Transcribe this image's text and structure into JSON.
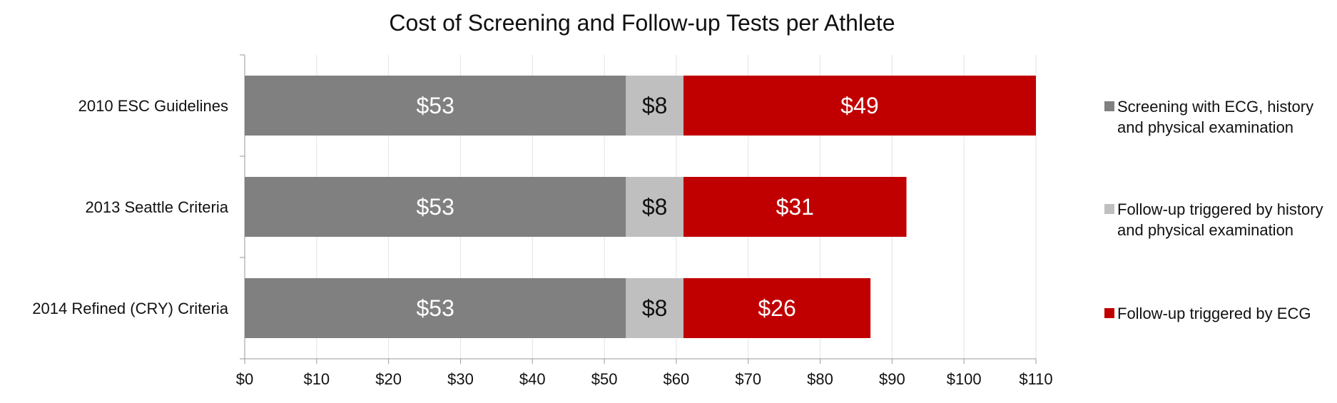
{
  "chart_data": {
    "type": "bar",
    "orientation": "horizontal",
    "stacked": true,
    "title": "Cost of Screening and Follow-up Tests per Athlete",
    "xlabel": "",
    "ylabel": "",
    "xlim": [
      0,
      110
    ],
    "x_ticks": [
      "$0",
      "$10",
      "$20",
      "$30",
      "$40",
      "$50",
      "$60",
      "$70",
      "$80",
      "$90",
      "$100",
      "$110"
    ],
    "categories": [
      "2010 ESC Guidelines",
      "2013 Seattle Criteria",
      "2014 Refined (CRY) Criteria"
    ],
    "series": [
      {
        "name": "Screening with ECG, history and physical examination",
        "color": "#808080",
        "label_color": "#ffffff",
        "values": [
          53,
          53,
          53
        ],
        "labels": [
          "$53",
          "$53",
          "$53"
        ]
      },
      {
        "name": "Follow-up triggered by history and physical examination",
        "color": "#bfbfbf",
        "label_color": "#111111",
        "values": [
          8,
          8,
          8
        ],
        "labels": [
          "$8",
          "$8",
          "$8"
        ]
      },
      {
        "name": "Follow-up triggered by ECG",
        "color": "#c00000",
        "label_color": "#ffffff",
        "values": [
          49,
          31,
          26
        ],
        "labels": [
          "$49",
          "$31",
          "$26"
        ]
      }
    ],
    "grid": "vertical",
    "legend_position": "right"
  }
}
